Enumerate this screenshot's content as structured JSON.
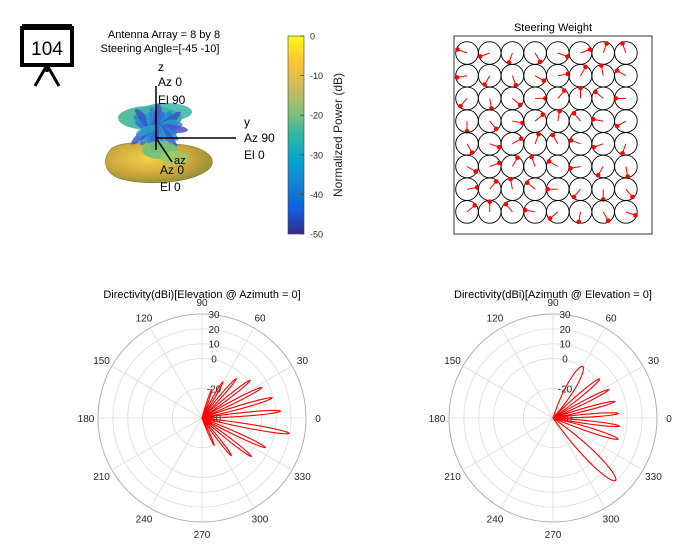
{
  "badge": {
    "number": "104"
  },
  "pattern_3d": {
    "title_line1": "Antenna Array = 8 by 8",
    "title_line2": "Steering Angle=[-45 -10]",
    "z_axis": {
      "name": "z",
      "az": "Az 0",
      "el": "El 90"
    },
    "y_axis": {
      "name": "y",
      "az": "Az 90",
      "el": "El 0"
    },
    "x_axis": {
      "name": "az",
      "az": "Az 0",
      "el": "El 0"
    },
    "colorbar": {
      "label": "Normalized Power (dB)",
      "ticks": [
        "0",
        "-10",
        "-20",
        "-30",
        "-40",
        "-50"
      ],
      "range": [
        -50,
        0
      ]
    }
  },
  "chart_data": [
    {
      "type": "heatmap",
      "title": "Steering Weight",
      "grid": {
        "rows": 8,
        "cols": 8
      },
      "phase_angles_deg": [
        [
          160,
          200,
          250,
          300,
          340,
          20,
          70,
          110
        ],
        [
          190,
          240,
          290,
          330,
          10,
          60,
          100,
          150
        ],
        [
          230,
          280,
          320,
          0,
          50,
          90,
          140,
          180
        ],
        [
          270,
          310,
          350,
          40,
          80,
          130,
          170,
          210
        ],
        [
          300,
          340,
          30,
          70,
          120,
          160,
          200,
          250
        ],
        [
          330,
          20,
          60,
          110,
          150,
          190,
          240,
          280
        ],
        [
          10,
          50,
          100,
          140,
          180,
          230,
          270,
          310
        ],
        [
          40,
          90,
          130,
          170,
          220,
          260,
          300,
          340
        ]
      ]
    },
    {
      "type": "line",
      "subtype": "polar",
      "title": "Directivity(dBi)[Elevation @ Azimuth = 0]",
      "angle_ticks": [
        "0",
        "30",
        "60",
        "90",
        "120",
        "150",
        "180",
        "210",
        "240",
        "270",
        "300",
        "330"
      ],
      "radial_ticks": [
        "30",
        "20",
        "10",
        "0",
        "-20",
        "-40"
      ],
      "rlim": [
        -40,
        30
      ],
      "series": [
        {
          "lobes": [
            {
              "center_deg": -10,
              "peak_dB": 19.5,
              "halfwidth_deg": 4
            },
            {
              "center_deg": 5,
              "peak_dB": 13,
              "halfwidth_deg": 4
            },
            {
              "center_deg": 16,
              "peak_dB": 9,
              "halfwidth_deg": 4
            },
            {
              "center_deg": 27,
              "peak_dB": 5,
              "halfwidth_deg": 4
            },
            {
              "center_deg": 38,
              "peak_dB": 1,
              "halfwidth_deg": 4
            },
            {
              "center_deg": 49,
              "peak_dB": -5,
              "halfwidth_deg": 4
            },
            {
              "center_deg": 60,
              "peak_dB": -12,
              "halfwidth_deg": 4
            },
            {
              "center_deg": 71,
              "peak_dB": -20,
              "halfwidth_deg": 4
            },
            {
              "center_deg": -25,
              "peak_dB": 7,
              "halfwidth_deg": 4
            },
            {
              "center_deg": -38,
              "peak_dB": 2,
              "halfwidth_deg": 4
            },
            {
              "center_deg": -52,
              "peak_dB": -8,
              "halfwidth_deg": 4
            },
            {
              "center_deg": -66,
              "peak_dB": -20,
              "halfwidth_deg": 4
            }
          ]
        }
      ]
    },
    {
      "type": "line",
      "subtype": "polar",
      "title": "Directivity(dBi)[Azimuth @ Elevation = 0]",
      "angle_ticks": [
        "0",
        "30",
        "60",
        "90",
        "120",
        "150",
        "180",
        "210",
        "240",
        "270",
        "300",
        "330"
      ],
      "radial_ticks": [
        "30",
        "20",
        "10",
        "0",
        "-20",
        "-40"
      ],
      "rlim": [
        -40,
        30
      ],
      "series": [
        {
          "lobes": [
            {
              "center_deg": -45,
              "peak_dB": 19.5,
              "halfwidth_deg": 10
            },
            {
              "center_deg": -18,
              "peak_dB": 6,
              "halfwidth_deg": 5
            },
            {
              "center_deg": -7,
              "peak_dB": 5,
              "halfwidth_deg": 4
            },
            {
              "center_deg": 4,
              "peak_dB": 4,
              "halfwidth_deg": 4
            },
            {
              "center_deg": 15,
              "peak_dB": 3,
              "halfwidth_deg": 4
            },
            {
              "center_deg": 27,
              "peak_dB": 2,
              "halfwidth_deg": 4
            },
            {
              "center_deg": 40,
              "peak_dB": 1,
              "halfwidth_deg": 5
            },
            {
              "center_deg": 60,
              "peak_dB": 0,
              "halfwidth_deg": 12
            }
          ]
        }
      ]
    }
  ]
}
